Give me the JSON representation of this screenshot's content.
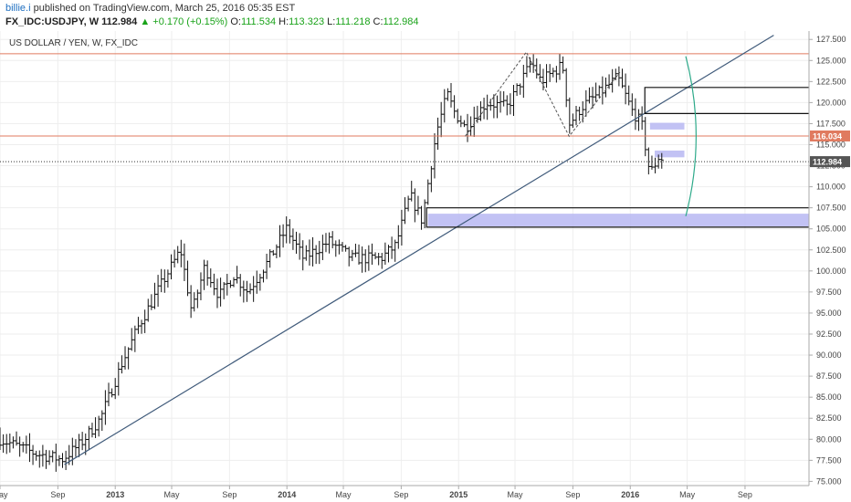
{
  "header": {
    "author": "billie.i",
    "published_text": "published on TradingView.com, March 25, 2016 05:35 EST",
    "symbol": "FX_IDC:USDJPY, W",
    "last": "112.984",
    "change": "▲ +0.170 (+0.15%)",
    "o_label": "O:",
    "o_value": "111.534",
    "h_label": "H:",
    "h_value": "113.323",
    "l_label": "L:",
    "l_value": "111.218",
    "c_label": "C:",
    "c_value": "112.984"
  },
  "colors": {
    "up": "#1aa31a",
    "author": "#1e6fc1",
    "resistance": "#e07a5f",
    "trend": "#3f5a7a",
    "zone": "#b7b7f2"
  },
  "chart_data": {
    "type": "ohlc",
    "title": "US DOLLAR / YEN, W, FX_IDC",
    "ylim": [
      74.5,
      128.5
    ],
    "y_ticks": [
      75,
      77.5,
      80,
      82.5,
      85,
      87.5,
      90,
      92.5,
      95,
      97.5,
      100,
      102.5,
      105,
      107.5,
      110,
      112.5,
      115,
      117.5,
      120,
      122.5,
      125,
      127.5
    ],
    "y_tick_labels": [
      "75.000",
      "77.500",
      "80.000",
      "82.500",
      "85.000",
      "87.500",
      "90.000",
      "92.500",
      "95.000",
      "97.500",
      "100.000",
      "102.500",
      "105.000",
      "107.500",
      "110.000",
      "112.500",
      "115.000",
      "117.500",
      "120.000",
      "122.500",
      "125.000",
      "127.500"
    ],
    "x_range": [
      "2012-05-01",
      "2017-01-15"
    ],
    "x_ticks": [
      {
        "date": "2012-05-01",
        "label": "May"
      },
      {
        "date": "2012-09-01",
        "label": "Sep"
      },
      {
        "date": "2013-01-01",
        "label": "2013"
      },
      {
        "date": "2013-05-01",
        "label": "May"
      },
      {
        "date": "2013-09-01",
        "label": "Sep"
      },
      {
        "date": "2014-01-01",
        "label": "2014"
      },
      {
        "date": "2014-05-01",
        "label": "May"
      },
      {
        "date": "2014-09-01",
        "label": "Sep"
      },
      {
        "date": "2015-01-01",
        "label": "2015"
      },
      {
        "date": "2015-05-01",
        "label": "May"
      },
      {
        "date": "2015-09-01",
        "label": "Sep"
      },
      {
        "date": "2016-01-01",
        "label": "2016"
      },
      {
        "date": "2016-05-01",
        "label": "May"
      },
      {
        "date": "2016-09-01",
        "label": "Sep"
      }
    ],
    "keypoints": [
      [
        "2012-05-01",
        80.0
      ],
      [
        "2012-06-15",
        79.0
      ],
      [
        "2012-07-15",
        78.3
      ],
      [
        "2012-09-10",
        77.6
      ],
      [
        "2012-10-20",
        79.5
      ],
      [
        "2012-12-01",
        82.5
      ],
      [
        "2013-01-15",
        89.0
      ],
      [
        "2013-02-20",
        93.5
      ],
      [
        "2013-04-10",
        98.5
      ],
      [
        "2013-05-20",
        102.5
      ],
      [
        "2013-06-13",
        95.0
      ],
      [
        "2013-07-10",
        100.5
      ],
      [
        "2013-08-10",
        97.0
      ],
      [
        "2013-09-10",
        99.5
      ],
      [
        "2013-10-10",
        97.5
      ],
      [
        "2013-11-20",
        101.0
      ],
      [
        "2013-12-31",
        105.0
      ],
      [
        "2014-02-05",
        101.5
      ],
      [
        "2014-04-01",
        103.5
      ],
      [
        "2014-05-20",
        101.5
      ],
      [
        "2014-07-20",
        101.5
      ],
      [
        "2014-08-20",
        103.0
      ],
      [
        "2014-09-20",
        109.0
      ],
      [
        "2014-10-15",
        106.0
      ],
      [
        "2014-11-15",
        116.5
      ],
      [
        "2014-12-08",
        121.0
      ],
      [
        "2014-12-22",
        119.0
      ],
      [
        "2015-01-15",
        117.0
      ],
      [
        "2015-03-01",
        120.0
      ],
      [
        "2015-04-15",
        119.5
      ],
      [
        "2015-06-05",
        124.8
      ],
      [
        "2015-06-25",
        122.5
      ],
      [
        "2015-08-10",
        124.5
      ],
      [
        "2015-08-25",
        117.5
      ],
      [
        "2015-09-20",
        119.5
      ],
      [
        "2015-11-05",
        121.5
      ],
      [
        "2015-12-05",
        123.0
      ],
      [
        "2016-01-05",
        119.0
      ],
      [
        "2016-01-25",
        117.5
      ],
      [
        "2016-02-12",
        111.5
      ],
      [
        "2016-03-01",
        113.5
      ],
      [
        "2016-03-25",
        113.0
      ]
    ],
    "ohlc_weeks": 202,
    "last_bar": {
      "o": 111.534,
      "h": 113.323,
      "l": 111.218,
      "c": 112.984
    },
    "annotations": {
      "resistance_lines": [
        125.8,
        116.034
      ],
      "current_price_line": 112.984,
      "price_labels": [
        {
          "value": 116.034,
          "text": "116.034",
          "color": "#e07a5f"
        },
        {
          "value": 112.984,
          "text": "112.984",
          "color": "#555555"
        }
      ],
      "trendline": {
        "start": [
          "2012-09-15",
          77.0
        ],
        "end": [
          "2016-11-01",
          128.0
        ]
      },
      "boxes": [
        {
          "from": "2016-02-01",
          "to": "2017-01-15",
          "top": 121.8,
          "bottom": 118.7,
          "left_top": 121.8,
          "left_bottom": 118.7
        },
        {
          "from": "2014-10-25",
          "to": "2017-01-15",
          "top": 107.5,
          "bottom": 105.2
        }
      ],
      "zones": [
        {
          "from": "2016-02-12",
          "to": "2016-04-25",
          "top": 117.6,
          "bottom": 116.8
        },
        {
          "from": "2016-02-22",
          "to": "2016-04-25",
          "top": 114.3,
          "bottom": 113.5
        },
        {
          "from": "2014-10-28",
          "to": "2017-01-15",
          "top": 106.8,
          "bottom": 105.3
        }
      ],
      "dashed_pattern": [
        [
          "2015-01-15",
          116.0
        ],
        [
          "2015-05-25",
          126.0
        ],
        [
          "2015-08-24",
          116.0
        ],
        [
          "2015-12-10",
          123.6
        ]
      ],
      "arc": {
        "start": [
          "2016-04-28",
          125.5
        ],
        "apex": [
          "2016-05-20",
          116.0
        ],
        "end": [
          "2016-04-28",
          106.5
        ]
      }
    }
  }
}
